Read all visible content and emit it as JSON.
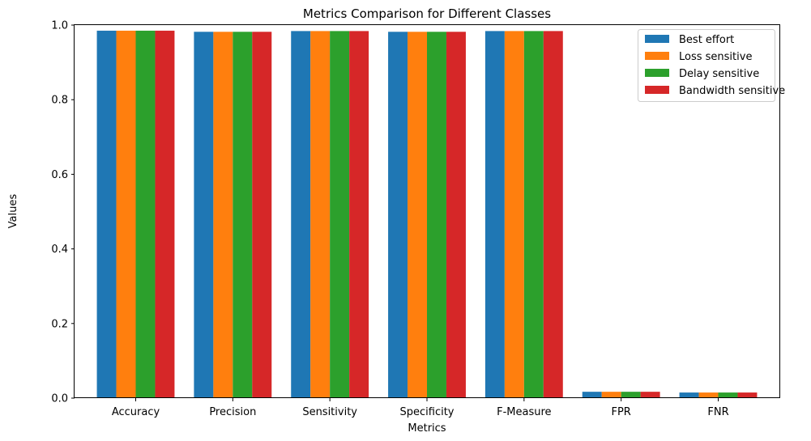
{
  "chart_data": {
    "type": "bar",
    "title": "Metrics Comparison for Different Classes",
    "xlabel": "Metrics",
    "ylabel": "Values",
    "ylim": [
      0,
      1.0
    ],
    "yticks": [
      "0.0",
      "0.2",
      "0.4",
      "0.6",
      "0.8",
      "1.0"
    ],
    "categories": [
      "Accuracy",
      "Precision",
      "Sensitivity",
      "Specificity",
      "F-Measure",
      "FPR",
      "FNR"
    ],
    "series": [
      {
        "name": "Best effort",
        "color": "#1f77b4",
        "values": [
          0.985,
          0.982,
          0.984,
          0.982,
          0.984,
          0.017,
          0.015
        ]
      },
      {
        "name": "Loss sensitive",
        "color": "#ff7f0e",
        "values": [
          0.985,
          0.982,
          0.984,
          0.982,
          0.984,
          0.017,
          0.015
        ]
      },
      {
        "name": "Delay sensitive",
        "color": "#2ca02c",
        "values": [
          0.985,
          0.982,
          0.984,
          0.982,
          0.984,
          0.017,
          0.015
        ]
      },
      {
        "name": "Bandwidth sensitive",
        "color": "#d62728",
        "values": [
          0.985,
          0.982,
          0.984,
          0.982,
          0.984,
          0.017,
          0.015
        ]
      }
    ],
    "legend_position": "top-right",
    "grid": false
  }
}
